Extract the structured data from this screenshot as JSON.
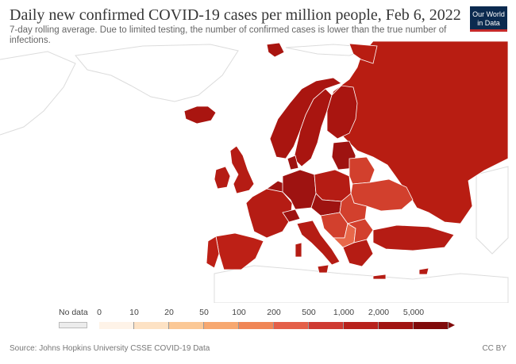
{
  "header": {
    "title": "Daily new confirmed COVID-19 cases per million people, Feb 6, 2022",
    "subtitle": "7-day rolling average. Due to limited testing, the number of confirmed cases is lower than the true number of infections."
  },
  "logo": {
    "line1": "Our World",
    "line2": "in Data"
  },
  "legend": {
    "no_data_label": "No data",
    "ticks": [
      "0",
      "10",
      "20",
      "50",
      "100",
      "200",
      "500",
      "1,000",
      "2,000",
      "5,000"
    ],
    "colors": [
      "#fef3e8",
      "#fde2c4",
      "#fbc896",
      "#f7a870",
      "#f08656",
      "#e45f48",
      "#cf3a32",
      "#b8221c",
      "#a11412",
      "#800a0a"
    ]
  },
  "footer": {
    "source": "Source: Johns Hopkins University CSSE COVID-19 Data",
    "license": "CC BY"
  },
  "map_colors": {
    "land_outline": "#dddddd",
    "russia": "#b81d12",
    "nordic": "#a91510",
    "western": "#b51c14",
    "central": "#9e1311",
    "iberia": "#bd2016",
    "lighter": "#d2402d",
    "lightest": "#e8684a"
  }
}
